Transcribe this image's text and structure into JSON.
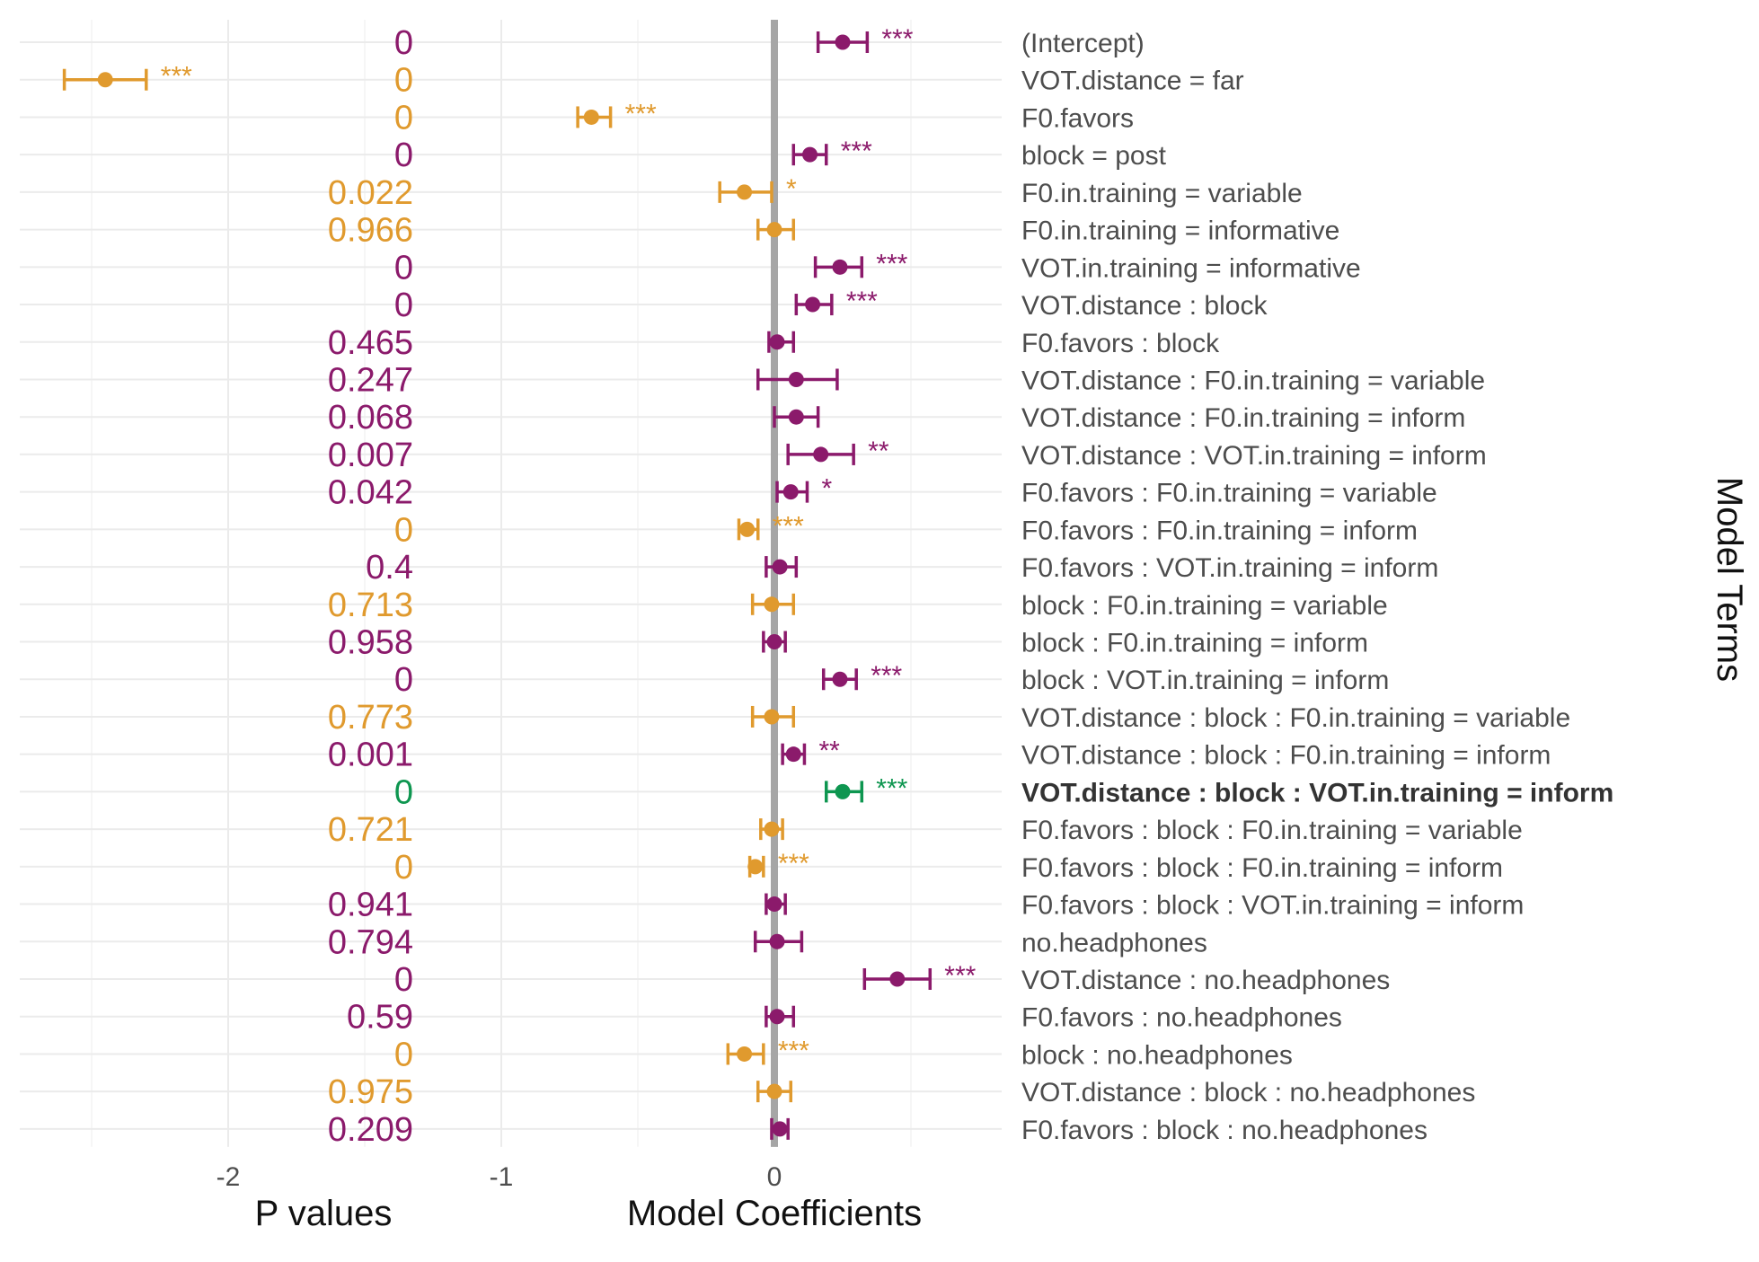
{
  "chart_data": {
    "type": "scatter",
    "subtype": "coefficient-plot-with-error-bars",
    "xlabel": "Model Coefficients",
    "pvalues_label": "P values",
    "ylabel": "Model Terms",
    "x_ticks": [
      -2,
      -1,
      0
    ],
    "xlim": [
      -2.75,
      0.85
    ],
    "grid": true,
    "legend": "none",
    "colors": {
      "positive": "#8B1A6B",
      "negative": "#E09A2E",
      "highlight": "#0E9650",
      "zero_line": "#A6A6A6"
    },
    "terms": [
      {
        "label": "(Intercept)",
        "estimate": 0.25,
        "low": 0.16,
        "high": 0.34,
        "p": "0",
        "sig": "***",
        "group": "positive"
      },
      {
        "label": "VOT.distance = far",
        "estimate": -2.45,
        "low": -2.6,
        "high": -2.3,
        "p": "0",
        "sig": "***",
        "group": "negative"
      },
      {
        "label": "F0.favors",
        "estimate": -0.67,
        "low": -0.72,
        "high": -0.6,
        "p": "0",
        "sig": "***",
        "group": "negative"
      },
      {
        "label": "block = post",
        "estimate": 0.13,
        "low": 0.07,
        "high": 0.19,
        "p": "0",
        "sig": "***",
        "group": "positive"
      },
      {
        "label": "F0.in.training = variable",
        "estimate": -0.11,
        "low": -0.2,
        "high": -0.01,
        "p": "0.022",
        "sig": "*",
        "group": "negative"
      },
      {
        "label": "F0.in.training = informative",
        "estimate": 0.0,
        "low": -0.06,
        "high": 0.07,
        "p": "0.966",
        "sig": "",
        "group": "negative"
      },
      {
        "label": "VOT.in.training = informative",
        "estimate": 0.24,
        "low": 0.15,
        "high": 0.32,
        "p": "0",
        "sig": "***",
        "group": "positive"
      },
      {
        "label": "VOT.distance : block",
        "estimate": 0.14,
        "low": 0.08,
        "high": 0.21,
        "p": "0",
        "sig": "***",
        "group": "positive"
      },
      {
        "label": "F0.favors : block",
        "estimate": 0.01,
        "low": -0.02,
        "high": 0.07,
        "p": "0.465",
        "sig": "",
        "group": "positive"
      },
      {
        "label": "VOT.distance : F0.in.training = variable",
        "estimate": 0.08,
        "low": -0.06,
        "high": 0.23,
        "p": "0.247",
        "sig": "",
        "group": "positive"
      },
      {
        "label": "VOT.distance : F0.in.training = inform",
        "estimate": 0.08,
        "low": 0.0,
        "high": 0.16,
        "p": "0.068",
        "sig": "",
        "group": "positive"
      },
      {
        "label": "VOT.distance : VOT.in.training = inform",
        "estimate": 0.17,
        "low": 0.05,
        "high": 0.29,
        "p": "0.007",
        "sig": "**",
        "group": "positive"
      },
      {
        "label": "F0.favors : F0.in.training = variable",
        "estimate": 0.06,
        "low": 0.01,
        "high": 0.12,
        "p": "0.042",
        "sig": "*",
        "group": "positive"
      },
      {
        "label": "F0.favors : F0.in.training = inform",
        "estimate": -0.1,
        "low": -0.13,
        "high": -0.06,
        "p": "0",
        "sig": "***",
        "group": "negative"
      },
      {
        "label": "F0.favors : VOT.in.training = inform",
        "estimate": 0.02,
        "low": -0.03,
        "high": 0.08,
        "p": "0.4",
        "sig": "",
        "group": "positive"
      },
      {
        "label": "block : F0.in.training = variable",
        "estimate": -0.01,
        "low": -0.08,
        "high": 0.07,
        "p": "0.713",
        "sig": "",
        "group": "negative"
      },
      {
        "label": "block : F0.in.training = inform",
        "estimate": 0.0,
        "low": -0.04,
        "high": 0.04,
        "p": "0.958",
        "sig": "",
        "group": "positive"
      },
      {
        "label": "block : VOT.in.training = inform",
        "estimate": 0.24,
        "low": 0.18,
        "high": 0.3,
        "p": "0",
        "sig": "***",
        "group": "positive"
      },
      {
        "label": "VOT.distance : block : F0.in.training = variable",
        "estimate": -0.01,
        "low": -0.08,
        "high": 0.07,
        "p": "0.773",
        "sig": "",
        "group": "negative"
      },
      {
        "label": "VOT.distance : block : F0.in.training = inform",
        "estimate": 0.07,
        "low": 0.03,
        "high": 0.11,
        "p": "0.001",
        "sig": "**",
        "group": "positive"
      },
      {
        "label": "VOT.distance : block : VOT.in.training = inform",
        "estimate": 0.25,
        "low": 0.19,
        "high": 0.32,
        "p": "0",
        "sig": "***",
        "group": "highlight",
        "bold": true
      },
      {
        "label": "F0.favors : block : F0.in.training = variable",
        "estimate": -0.01,
        "low": -0.05,
        "high": 0.03,
        "p": "0.721",
        "sig": "",
        "group": "negative"
      },
      {
        "label": "F0.favors : block : F0.in.training = inform",
        "estimate": -0.07,
        "low": -0.09,
        "high": -0.04,
        "p": "0",
        "sig": "***",
        "group": "negative"
      },
      {
        "label": "F0.favors : block : VOT.in.training = inform",
        "estimate": 0.0,
        "low": -0.03,
        "high": 0.04,
        "p": "0.941",
        "sig": "",
        "group": "positive"
      },
      {
        "label": "no.headphones",
        "estimate": 0.01,
        "low": -0.07,
        "high": 0.1,
        "p": "0.794",
        "sig": "",
        "group": "positive"
      },
      {
        "label": "VOT.distance : no.headphones",
        "estimate": 0.45,
        "low": 0.33,
        "high": 0.57,
        "p": "0",
        "sig": "***",
        "group": "positive"
      },
      {
        "label": "F0.favors : no.headphones",
        "estimate": 0.01,
        "low": -0.03,
        "high": 0.07,
        "p": "0.59",
        "sig": "",
        "group": "positive"
      },
      {
        "label": "block : no.headphones",
        "estimate": -0.11,
        "low": -0.17,
        "high": -0.04,
        "p": "0",
        "sig": "***",
        "group": "negative"
      },
      {
        "label": "VOT.distance : block : no.headphones",
        "estimate": 0.0,
        "low": -0.06,
        "high": 0.06,
        "p": "0.975",
        "sig": "",
        "group": "negative"
      },
      {
        "label": "F0.favors : block : no.headphones",
        "estimate": 0.02,
        "low": -0.01,
        "high": 0.05,
        "p": "0.209",
        "sig": "",
        "group": "positive"
      }
    ]
  }
}
